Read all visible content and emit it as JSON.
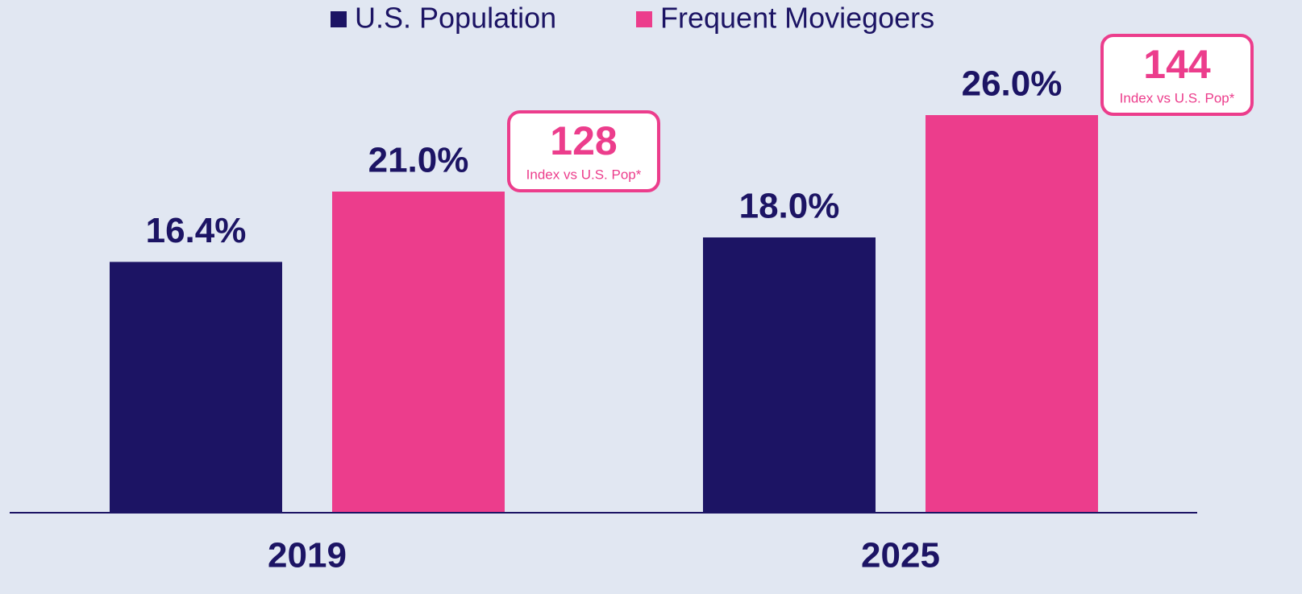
{
  "chart_data": {
    "type": "bar",
    "categories": [
      "2019",
      "2025"
    ],
    "series": [
      {
        "name": "U.S. Population",
        "color": "#1c1464",
        "values": [
          16.4,
          18.0
        ],
        "value_labels": [
          "16.4%",
          "18.0%"
        ]
      },
      {
        "name": "Frequent Moviegoers",
        "color": "#ec3d8c",
        "values": [
          21.0,
          26.0
        ],
        "value_labels": [
          "21.0%",
          "26.0%"
        ]
      }
    ],
    "annotations": [
      {
        "value": 128,
        "text": "Index vs U.S. Pop*"
      },
      {
        "value": 144,
        "text": "Index vs U.S. Pop*"
      }
    ]
  }
}
